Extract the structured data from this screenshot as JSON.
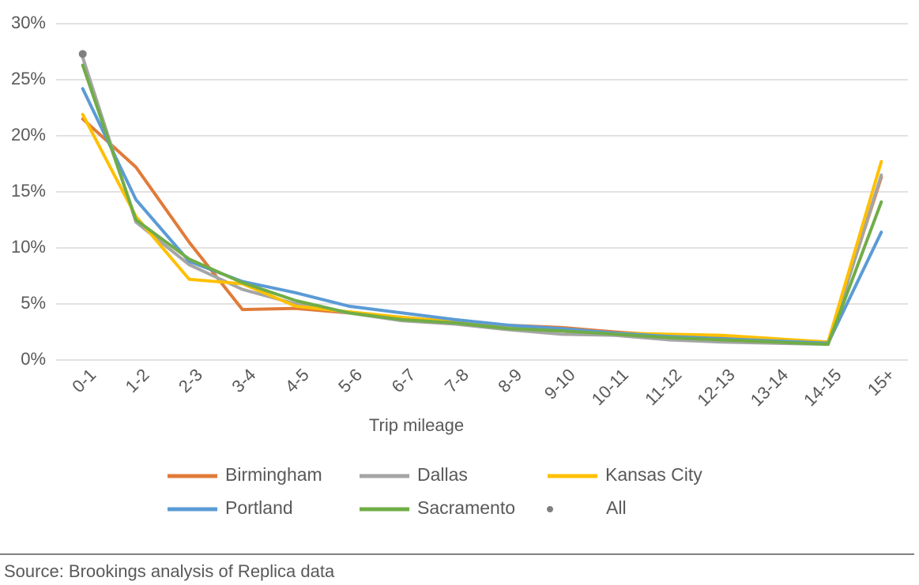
{
  "chart_data": {
    "type": "line",
    "x_label": "Trip mileage",
    "source": "Source: Brookings analysis of Replica data",
    "categories": [
      "0-1",
      "1-2",
      "2-3",
      "3-4",
      "4-5",
      "5-6",
      "6-7",
      "7-8",
      "8-9",
      "9-10",
      "10-11",
      "11-12",
      "12-13",
      "13-14",
      "14-15",
      "15+"
    ],
    "ylim": [
      0,
      30
    ],
    "yticks": [
      {
        "value": 0,
        "label": "0%"
      },
      {
        "value": 5,
        "label": "5%"
      },
      {
        "value": 10,
        "label": "10%"
      },
      {
        "value": 15,
        "label": "15%"
      },
      {
        "value": 20,
        "label": "20%"
      },
      {
        "value": 25,
        "label": "25%"
      },
      {
        "value": 30,
        "label": "30%"
      }
    ],
    "grid": true,
    "legend": "bottom",
    "series": [
      {
        "name": "Birmingham",
        "color": "#e07b39",
        "values": [
          21.5,
          17.2,
          10.5,
          4.5,
          4.6,
          4.2,
          3.8,
          3.4,
          3.1,
          2.9,
          2.5,
          2.2,
          2.0,
          1.8,
          1.6,
          16.3
        ]
      },
      {
        "name": "Dallas",
        "color": "#a5a5a5",
        "values": [
          27.0,
          12.3,
          8.5,
          6.3,
          5.0,
          4.2,
          3.5,
          3.2,
          2.7,
          2.3,
          2.2,
          1.8,
          1.6,
          1.5,
          1.4,
          16.5
        ]
      },
      {
        "name": "Kansas City",
        "color": "#ffc000",
        "values": [
          21.9,
          12.8,
          7.2,
          6.8,
          4.8,
          4.3,
          3.8,
          3.4,
          3.0,
          2.7,
          2.4,
          2.3,
          2.2,
          1.9,
          1.6,
          17.7
        ]
      },
      {
        "name": "Portland",
        "color": "#5b9bd5",
        "values": [
          24.2,
          14.3,
          8.8,
          7.0,
          6.0,
          4.8,
          4.2,
          3.6,
          3.1,
          2.8,
          2.4,
          2.1,
          1.9,
          1.7,
          1.5,
          11.4
        ]
      },
      {
        "name": "Sacramento",
        "color": "#70ad47",
        "values": [
          26.3,
          12.5,
          9.0,
          6.9,
          5.3,
          4.2,
          3.6,
          3.3,
          2.8,
          2.6,
          2.3,
          2.0,
          1.8,
          1.6,
          1.4,
          14.1
        ]
      },
      {
        "name": "All",
        "color": "#7f7f7f",
        "mode": "markers",
        "values": [
          27.3,
          null,
          null,
          null,
          null,
          null,
          null,
          null,
          null,
          null,
          null,
          null,
          null,
          null,
          null,
          null
        ]
      }
    ]
  }
}
